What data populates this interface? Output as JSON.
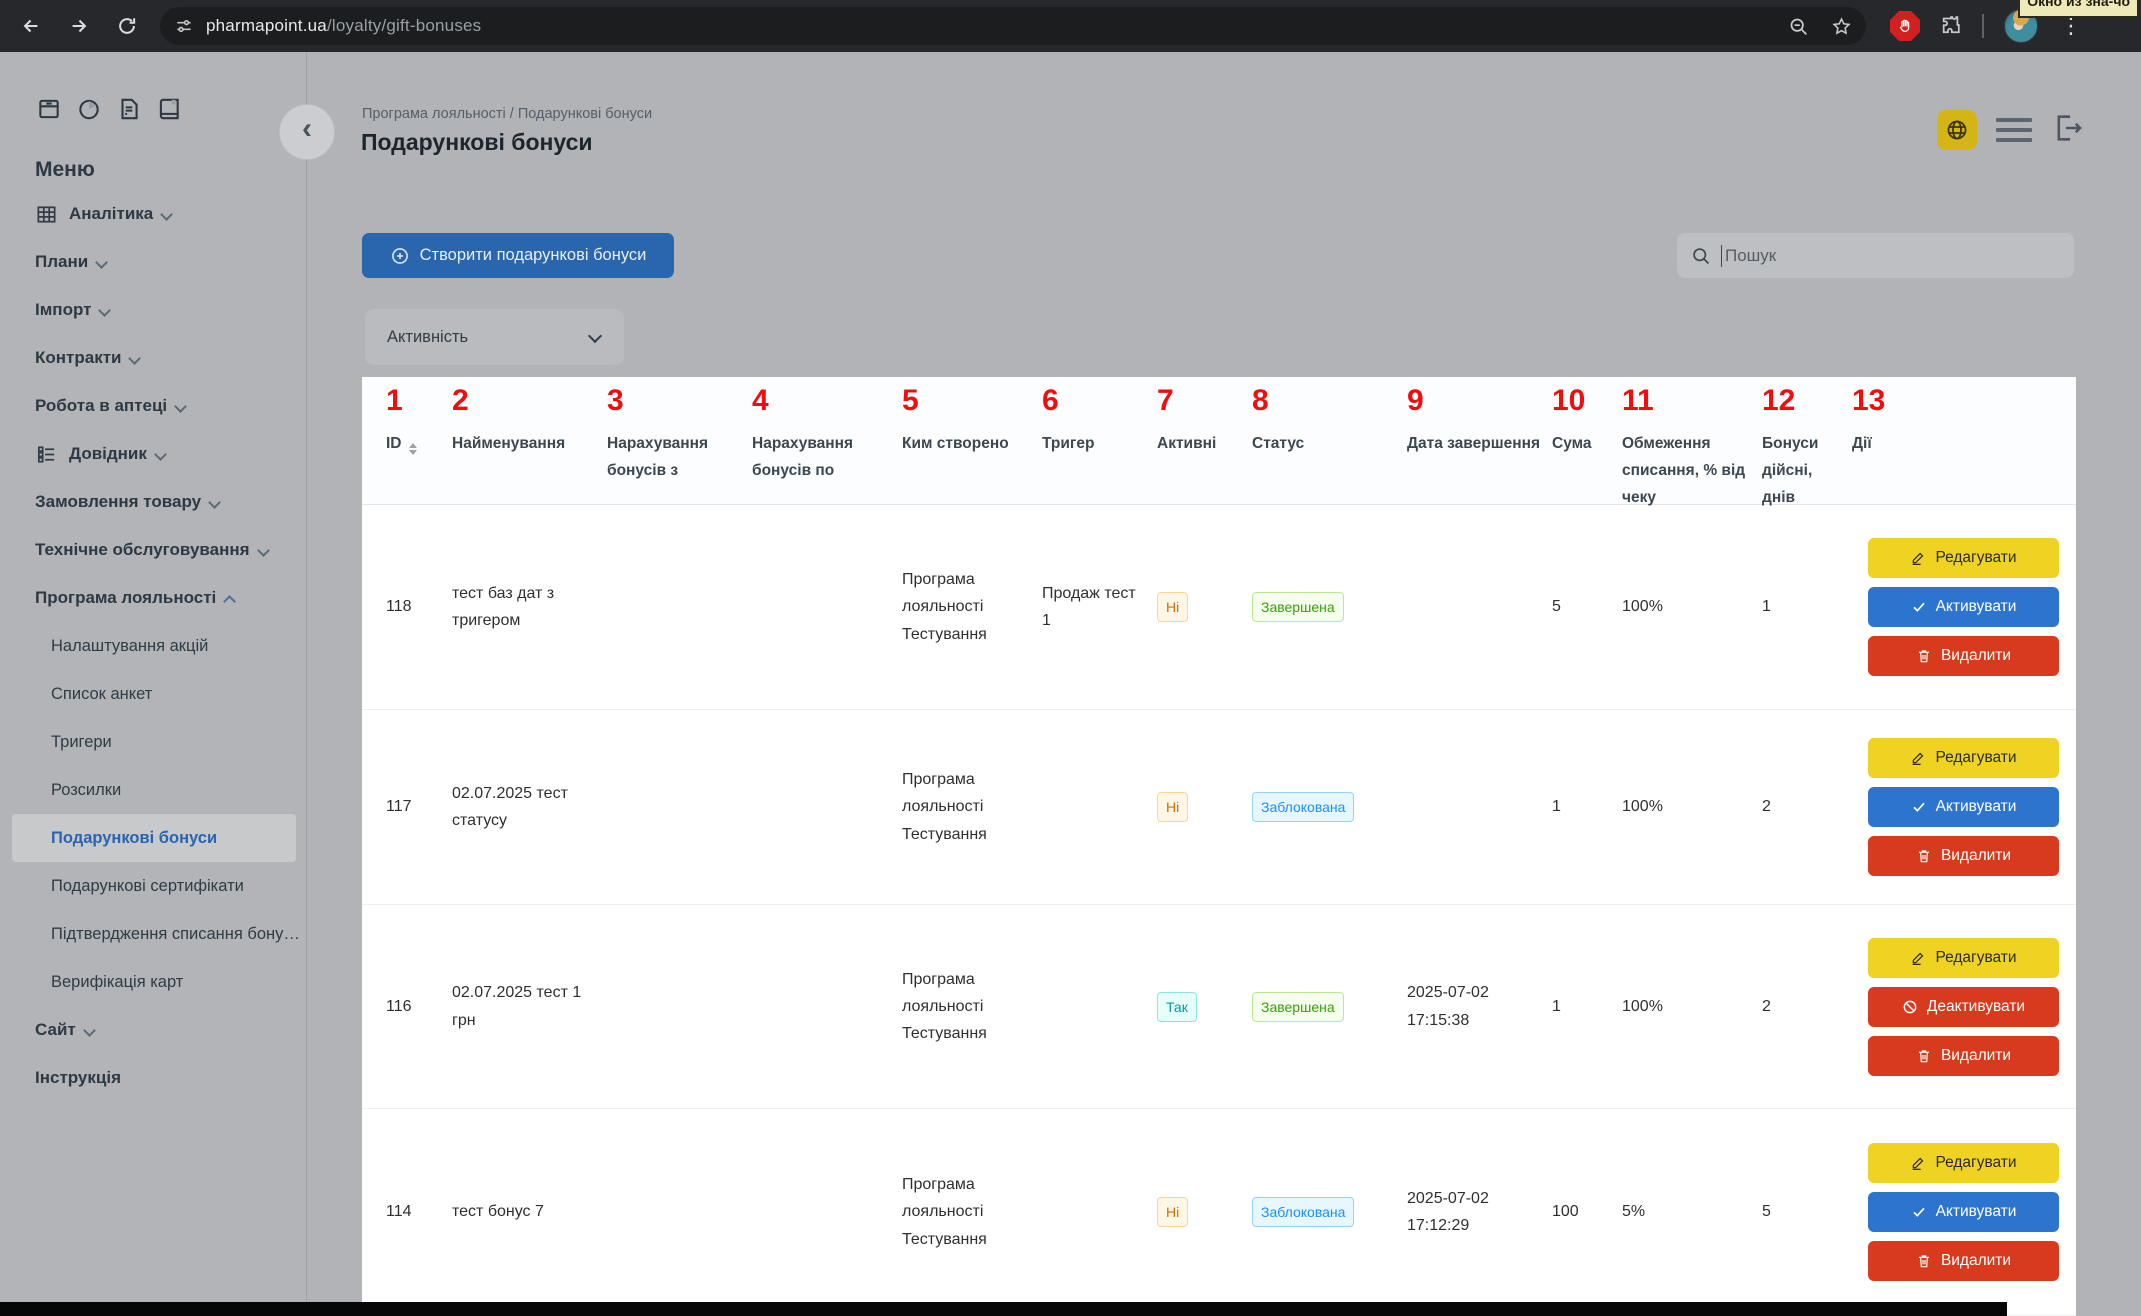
{
  "browser": {
    "url_domain": "pharmapoint.ua",
    "url_path": "/loyalty/gift-bonuses",
    "tooltip": "Окно из зна-чо"
  },
  "theme": {
    "accent_blue": "#2a66ae",
    "button_yellow": "#f0d322",
    "button_blue": "#2d74cf",
    "button_red": "#d73a1c",
    "tag_orange_text": "#d46b08",
    "tag_cyan_text": "#08979c",
    "tag_green_text": "#389e0d",
    "tag_blue_text": "#1890ff",
    "annotation_red": "#f10d0d",
    "sidebar_active_text": "#2a64b2"
  },
  "sidebar": {
    "menu_label": "Меню",
    "quick_icons": [
      "archive-icon",
      "pie-chart-icon",
      "document-icon",
      "book-icon"
    ],
    "items": [
      {
        "label": "Аналітика",
        "level": "top",
        "icon": "table-icon",
        "chevron": "down",
        "active": false
      },
      {
        "label": "Плани",
        "level": "top",
        "icon": null,
        "chevron": "down",
        "active": false
      },
      {
        "label": "Імпорт",
        "level": "top",
        "icon": null,
        "chevron": "down",
        "active": false
      },
      {
        "label": "Контракти",
        "level": "top",
        "icon": null,
        "chevron": "down",
        "active": false
      },
      {
        "label": "Робота в аптеці",
        "level": "top",
        "icon": null,
        "chevron": "down",
        "active": false
      },
      {
        "label": "Довідник",
        "level": "top",
        "icon": "list-icon",
        "chevron": "down",
        "active": false
      },
      {
        "label": "Замовлення товару",
        "level": "top",
        "icon": null,
        "chevron": "down",
        "active": false
      },
      {
        "label": "Технічне обслуговування",
        "level": "top",
        "icon": null,
        "chevron": "down",
        "active": false
      },
      {
        "label": "Програма лояльності",
        "level": "top",
        "icon": null,
        "chevron": "up",
        "active": false
      },
      {
        "label": "Налаштування акцій",
        "level": "sub",
        "icon": null,
        "chevron": null,
        "active": false
      },
      {
        "label": "Список анкет",
        "level": "sub",
        "icon": null,
        "chevron": null,
        "active": false
      },
      {
        "label": "Тригери",
        "level": "sub",
        "icon": null,
        "chevron": null,
        "active": false
      },
      {
        "label": "Розсилки",
        "level": "sub",
        "icon": null,
        "chevron": null,
        "active": false
      },
      {
        "label": "Подарункові бонуси",
        "level": "sub",
        "icon": null,
        "chevron": null,
        "active": true
      },
      {
        "label": "Подарункові сертифікати",
        "level": "sub",
        "icon": null,
        "chevron": null,
        "active": false
      },
      {
        "label": "Підтвердження списання бону…",
        "level": "sub",
        "icon": null,
        "chevron": null,
        "active": false
      },
      {
        "label": "Верифікація карт",
        "level": "sub",
        "icon": null,
        "chevron": null,
        "active": false
      },
      {
        "label": "Сайт",
        "level": "top",
        "icon": null,
        "chevron": "down",
        "active": false
      },
      {
        "label": "Інструкція",
        "level": "top",
        "icon": null,
        "chevron": null,
        "active": false
      }
    ]
  },
  "header": {
    "breadcrumb": "Програма лояльності / Подарункові бонуси",
    "title": "Подарункові бонуси"
  },
  "toolbar": {
    "create_label": "Створити подарункові бонуси",
    "search_placeholder": "Пошук",
    "filter_label": "Активність"
  },
  "table": {
    "columns": [
      {
        "n": "1",
        "label": "ID",
        "sortable": true
      },
      {
        "n": "2",
        "label": "Найменування",
        "sortable": false
      },
      {
        "n": "3",
        "label": "Нарахування бонусів з",
        "sortable": false
      },
      {
        "n": "4",
        "label": "Нарахування бонусів по",
        "sortable": false
      },
      {
        "n": "5",
        "label": "Ким створено",
        "sortable": false
      },
      {
        "n": "6",
        "label": "Тригер",
        "sortable": false
      },
      {
        "n": "7",
        "label": "Активні",
        "sortable": false
      },
      {
        "n": "8",
        "label": "Статус",
        "sortable": false
      },
      {
        "n": "9",
        "label": "Дата завершення",
        "sortable": false
      },
      {
        "n": "10",
        "label": "Сума",
        "sortable": false
      },
      {
        "n": "11",
        "label": "Обмеження списання, % від чеку",
        "sortable": false
      },
      {
        "n": "12",
        "label": "Бонуси дійсні, днів",
        "sortable": false
      },
      {
        "n": "13",
        "label": "Дії",
        "sortable": false
      }
    ],
    "action_labels": {
      "edit": "Редагувати",
      "activate": "Активувати",
      "deactivate": "Деактивувати",
      "delete": "Видалити"
    },
    "rows": [
      {
        "id": "118",
        "name": "тест баз дат з тригером",
        "accrual_from": "",
        "accrual_to": "",
        "created_by": "Програма лояльності Тестування",
        "trigger": "Продаж тест 1",
        "active": {
          "text": "Ні",
          "type": "orange"
        },
        "status": {
          "text": "Завершена",
          "type": "green"
        },
        "end_date": "",
        "sum": "5",
        "limit": "100%",
        "valid_days": "1",
        "actions": [
          "edit",
          "activate",
          "delete"
        ]
      },
      {
        "id": "117",
        "name": "02.07.2025 тест статусу",
        "accrual_from": "",
        "accrual_to": "",
        "created_by": "Програма лояльності Тестування",
        "trigger": "",
        "active": {
          "text": "Ні",
          "type": "orange"
        },
        "status": {
          "text": "Заблокована",
          "type": "blue"
        },
        "end_date": "",
        "sum": "1",
        "limit": "100%",
        "valid_days": "2",
        "actions": [
          "edit",
          "activate",
          "delete"
        ]
      },
      {
        "id": "116",
        "name": "02.07.2025 тест 1 грн",
        "accrual_from": "",
        "accrual_to": "",
        "created_by": "Програма лояльності Тестування",
        "trigger": "",
        "active": {
          "text": "Так",
          "type": "cyan"
        },
        "status": {
          "text": "Завершена",
          "type": "green"
        },
        "end_date": "2025-07-02\n17:15:38",
        "sum": "1",
        "limit": "100%",
        "valid_days": "2",
        "actions": [
          "edit",
          "deactivate",
          "delete"
        ]
      },
      {
        "id": "114",
        "name": "тест бонус 7",
        "accrual_from": "",
        "accrual_to": "",
        "created_by": "Програма лояльності Тестування",
        "trigger": "",
        "active": {
          "text": "Ні",
          "type": "orange"
        },
        "status": {
          "text": "Заблокована",
          "type": "blue"
        },
        "end_date": "2025-07-02\n17:12:29",
        "sum": "100",
        "limit": "5%",
        "valid_days": "5",
        "actions": [
          "edit",
          "activate",
          "delete"
        ]
      }
    ]
  }
}
